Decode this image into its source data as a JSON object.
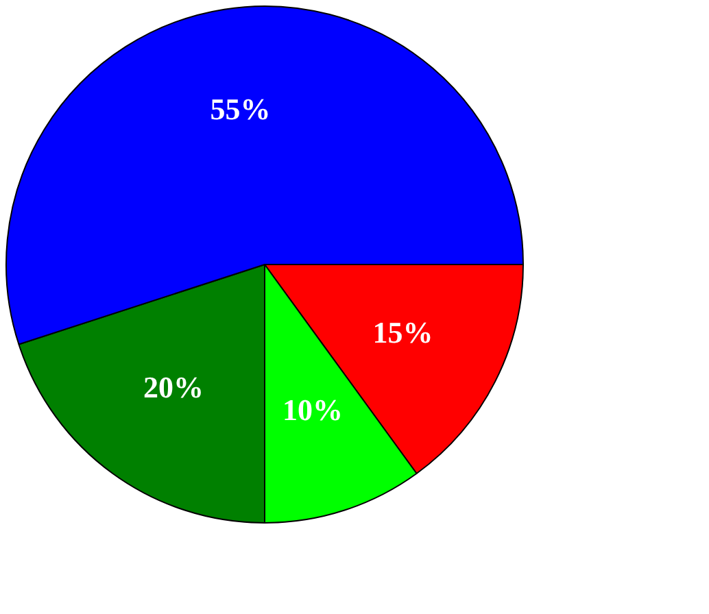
{
  "chart_data": {
    "type": "pie",
    "categories": [
      null,
      null,
      null,
      null
    ],
    "values": [
      15,
      10,
      20,
      55
    ],
    "colors": [
      "#ff0000",
      "#00ff00",
      "#008000",
      "#0000ff"
    ],
    "value_labels": [
      "15%",
      "10%",
      "20%",
      "55%"
    ],
    "legend": false
  }
}
